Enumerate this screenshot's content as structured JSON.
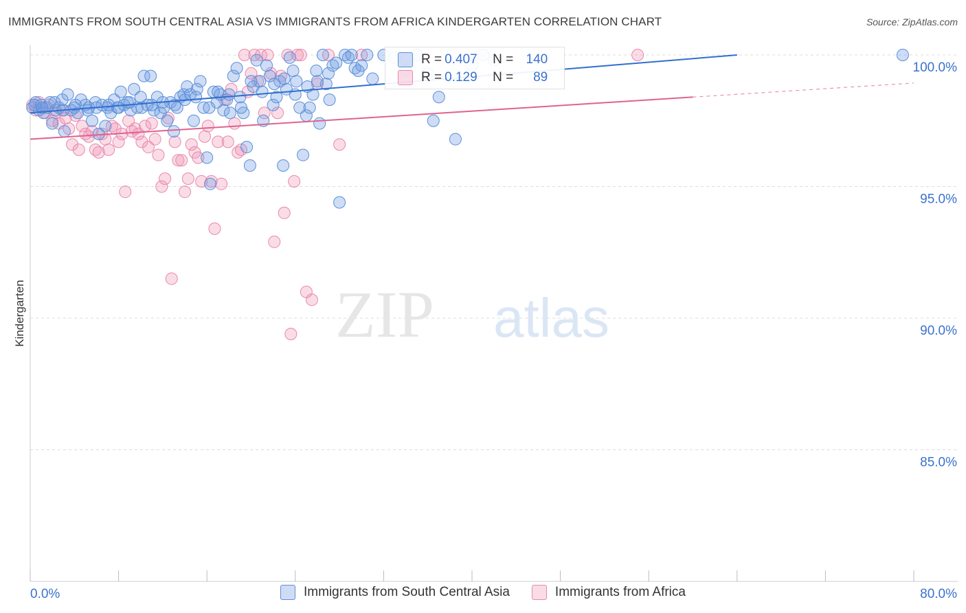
{
  "header": {
    "title": "IMMIGRANTS FROM SOUTH CENTRAL ASIA VS IMMIGRANTS FROM AFRICA KINDERGARTEN CORRELATION CHART",
    "source": "Source: ZipAtlas.com"
  },
  "watermark": {
    "zip": "ZIP",
    "atlas": "atlas"
  },
  "stats": {
    "r_label": "R =",
    "n_label": "N =",
    "series": [
      {
        "r": "0.407",
        "n": "140"
      },
      {
        "r": "0.129",
        "n": "89"
      }
    ]
  },
  "colors": {
    "blue": "#5b8fd9",
    "blue_fill": "rgba(114,158,226,0.35)",
    "blue_line": "#2f6fcf",
    "pink": "#e888aa",
    "pink_fill": "rgba(240,150,182,0.33)",
    "pink_line": "#e0628e",
    "axis_label": "#3a72cc",
    "grid": "#dcdcdc"
  },
  "chart_data": {
    "type": "scatter",
    "title": "IMMIGRANTS FROM SOUTH CENTRAL ASIA VS IMMIGRANTS FROM AFRICA KINDERGARTEN CORRELATION CHART",
    "xlabel": "",
    "ylabel": "Kindergarten",
    "xlim": [
      0,
      80
    ],
    "ylim": [
      80.5,
      100.8
    ],
    "x_tick_labels": [
      "0.0%",
      "80.0%"
    ],
    "y_ticks": [
      85,
      90,
      95,
      100
    ],
    "y_tick_labels": [
      "85.0%",
      "90.0%",
      "95.0%",
      "100.0%"
    ],
    "legend_position": "bottom",
    "series": [
      {
        "name": "Immigrants from South Central Asia",
        "color": "blue",
        "r": 0.407,
        "n": 140,
        "trend": {
          "x": [
            0,
            64
          ],
          "y": [
            97.8,
            100.0
          ],
          "dashed_to": 64
        },
        "points": [
          [
            0.2,
            98.0
          ],
          [
            0.5,
            98.2
          ],
          [
            0.8,
            97.9
          ],
          [
            1.0,
            98.1
          ],
          [
            1.2,
            97.8
          ],
          [
            1.5,
            98.0
          ],
          [
            1.8,
            98.2
          ],
          [
            2.0,
            97.4
          ],
          [
            2.3,
            97.9
          ],
          [
            2.6,
            98.0
          ],
          [
            2.9,
            98.3
          ],
          [
            3.1,
            97.1
          ],
          [
            3.4,
            98.5
          ],
          [
            3.7,
            97.9
          ],
          [
            4.0,
            98.0
          ],
          [
            4.3,
            97.8
          ],
          [
            4.6,
            98.3
          ],
          [
            5.0,
            98.1
          ],
          [
            5.3,
            98.0
          ],
          [
            5.6,
            97.5
          ],
          [
            5.9,
            98.2
          ],
          [
            6.2,
            97.0
          ],
          [
            6.5,
            98.1
          ],
          [
            6.8,
            97.3
          ],
          [
            7.0,
            98.0
          ],
          [
            7.3,
            97.8
          ],
          [
            7.6,
            98.3
          ],
          [
            7.9,
            98.0
          ],
          [
            8.2,
            98.6
          ],
          [
            8.5,
            98.1
          ],
          [
            8.8,
            98.2
          ],
          [
            9.1,
            97.9
          ],
          [
            9.4,
            98.7
          ],
          [
            9.7,
            98.0
          ],
          [
            10.0,
            98.4
          ],
          [
            10.3,
            99.2
          ],
          [
            10.6,
            98.1
          ],
          [
            10.9,
            99.2
          ],
          [
            11.2,
            97.9
          ],
          [
            11.5,
            98.4
          ],
          [
            11.8,
            97.8
          ],
          [
            12.1,
            98.0
          ],
          [
            12.4,
            97.5
          ],
          [
            12.7,
            98.2
          ],
          [
            13.0,
            97.1
          ],
          [
            13.3,
            98.0
          ],
          [
            13.6,
            98.4
          ],
          [
            13.9,
            98.5
          ],
          [
            14.2,
            98.8
          ],
          [
            14.5,
            98.5
          ],
          [
            14.8,
            97.5
          ],
          [
            15.1,
            98.7
          ],
          [
            15.4,
            99.0
          ],
          [
            15.7,
            98.0
          ],
          [
            16.0,
            96.1
          ],
          [
            16.3,
            95.1
          ],
          [
            16.6,
            98.6
          ],
          [
            16.9,
            98.2
          ],
          [
            17.2,
            98.5
          ],
          [
            17.5,
            97.9
          ],
          [
            17.8,
            98.3
          ],
          [
            18.1,
            97.8
          ],
          [
            18.4,
            99.2
          ],
          [
            18.7,
            99.5
          ],
          [
            19.0,
            98.4
          ],
          [
            19.3,
            97.8
          ],
          [
            19.6,
            96.5
          ],
          [
            19.9,
            95.8
          ],
          [
            20.2,
            98.8
          ],
          [
            20.5,
            99.8
          ],
          [
            20.8,
            99.0
          ],
          [
            21.1,
            97.5
          ],
          [
            21.4,
            99.6
          ],
          [
            21.7,
            99.2
          ],
          [
            22.0,
            98.1
          ],
          [
            22.3,
            98.4
          ],
          [
            22.6,
            99.0
          ],
          [
            22.9,
            95.8
          ],
          [
            23.2,
            98.7
          ],
          [
            23.5,
            99.9
          ],
          [
            23.8,
            99.4
          ],
          [
            24.1,
            99.0
          ],
          [
            24.4,
            98.0
          ],
          [
            24.7,
            96.2
          ],
          [
            25.0,
            97.7
          ],
          [
            25.3,
            98.0
          ],
          [
            25.6,
            98.5
          ],
          [
            25.9,
            99.4
          ],
          [
            26.2,
            97.4
          ],
          [
            26.5,
            100.0
          ],
          [
            26.8,
            98.9
          ],
          [
            27.1,
            98.3
          ],
          [
            27.4,
            99.6
          ],
          [
            27.7,
            99.7
          ],
          [
            28.0,
            94.4
          ],
          [
            28.5,
            100.0
          ],
          [
            28.8,
            99.9
          ],
          [
            29.1,
            100.0
          ],
          [
            29.4,
            99.5
          ],
          [
            29.7,
            99.4
          ],
          [
            30.0,
            99.6
          ],
          [
            30.5,
            100.0
          ],
          [
            31.0,
            99.1
          ],
          [
            32.0,
            100.0
          ],
          [
            33.0,
            99.9
          ],
          [
            34.0,
            99.4
          ],
          [
            35.0,
            100.0
          ],
          [
            36.0,
            99.3
          ],
          [
            36.5,
            97.5
          ],
          [
            37.0,
            98.4
          ],
          [
            38.5,
            96.8
          ],
          [
            40.0,
            99.6
          ],
          [
            41.0,
            100.0
          ],
          [
            42.0,
            99.8
          ],
          [
            79.0,
            100.0
          ],
          [
            0.4,
            98.1
          ],
          [
            1.1,
            98.0
          ],
          [
            2.2,
            98.2
          ],
          [
            3.0,
            97.9
          ],
          [
            4.1,
            98.1
          ],
          [
            5.2,
            97.9
          ],
          [
            6.0,
            98.0
          ],
          [
            7.1,
            98.1
          ],
          [
            8.0,
            98.0
          ],
          [
            9.0,
            98.2
          ],
          [
            10.1,
            98.0
          ],
          [
            11.0,
            98.1
          ],
          [
            12.0,
            98.2
          ],
          [
            13.1,
            98.1
          ],
          [
            14.0,
            98.3
          ],
          [
            15.0,
            98.4
          ],
          [
            16.2,
            98.0
          ],
          [
            17.0,
            98.6
          ],
          [
            18.0,
            98.5
          ],
          [
            19.1,
            98.0
          ],
          [
            20.0,
            99.0
          ],
          [
            21.0,
            98.6
          ],
          [
            22.1,
            98.9
          ],
          [
            23.0,
            99.1
          ],
          [
            24.0,
            98.5
          ],
          [
            25.1,
            98.8
          ],
          [
            26.0,
            99.0
          ],
          [
            27.0,
            99.3
          ]
        ]
      },
      {
        "name": "Immigrants from Africa",
        "color": "pink",
        "r": 0.129,
        "n": 89,
        "trend": {
          "x": [
            0,
            60
          ],
          "y": [
            96.8,
            98.4
          ],
          "dashed_to": 80
        },
        "points": [
          [
            0.2,
            98.1
          ],
          [
            0.5,
            97.9
          ],
          [
            0.8,
            98.2
          ],
          [
            1.1,
            98.0
          ],
          [
            1.4,
            97.8
          ],
          [
            1.7,
            98.1
          ],
          [
            2.0,
            97.5
          ],
          [
            2.3,
            97.8
          ],
          [
            2.6,
            97.4
          ],
          [
            2.9,
            97.9
          ],
          [
            3.2,
            97.6
          ],
          [
            3.5,
            97.2
          ],
          [
            3.8,
            96.6
          ],
          [
            4.1,
            97.7
          ],
          [
            4.4,
            96.4
          ],
          [
            4.7,
            97.3
          ],
          [
            5.0,
            97.0
          ],
          [
            5.3,
            96.9
          ],
          [
            5.6,
            97.1
          ],
          [
            5.9,
            96.4
          ],
          [
            6.2,
            96.3
          ],
          [
            6.5,
            97.0
          ],
          [
            6.8,
            96.8
          ],
          [
            7.1,
            96.4
          ],
          [
            7.4,
            97.3
          ],
          [
            7.7,
            97.2
          ],
          [
            8.0,
            96.7
          ],
          [
            8.3,
            97.0
          ],
          [
            8.6,
            94.8
          ],
          [
            8.9,
            97.5
          ],
          [
            9.2,
            97.1
          ],
          [
            9.5,
            97.2
          ],
          [
            9.8,
            97.0
          ],
          [
            10.1,
            96.7
          ],
          [
            10.4,
            97.3
          ],
          [
            10.7,
            96.5
          ],
          [
            11.0,
            97.4
          ],
          [
            11.3,
            96.8
          ],
          [
            11.6,
            96.2
          ],
          [
            11.9,
            95.0
          ],
          [
            12.2,
            95.3
          ],
          [
            12.5,
            97.6
          ],
          [
            12.8,
            91.5
          ],
          [
            13.1,
            96.7
          ],
          [
            13.4,
            96.0
          ],
          [
            13.7,
            96.0
          ],
          [
            14.0,
            94.8
          ],
          [
            14.3,
            95.3
          ],
          [
            14.6,
            96.6
          ],
          [
            14.9,
            96.3
          ],
          [
            15.2,
            96.1
          ],
          [
            15.5,
            95.2
          ],
          [
            15.8,
            96.9
          ],
          [
            16.1,
            97.3
          ],
          [
            16.4,
            95.2
          ],
          [
            16.7,
            93.4
          ],
          [
            17.0,
            96.7
          ],
          [
            17.3,
            95.1
          ],
          [
            17.6,
            98.3
          ],
          [
            17.9,
            96.7
          ],
          [
            18.2,
            98.7
          ],
          [
            18.5,
            97.4
          ],
          [
            18.8,
            96.3
          ],
          [
            19.1,
            96.4
          ],
          [
            19.4,
            100.0
          ],
          [
            19.7,
            98.6
          ],
          [
            20.0,
            99.3
          ],
          [
            20.3,
            100.0
          ],
          [
            20.6,
            99.0
          ],
          [
            20.9,
            100.0
          ],
          [
            21.2,
            97.8
          ],
          [
            21.5,
            100.0
          ],
          [
            21.8,
            99.3
          ],
          [
            22.1,
            92.9
          ],
          [
            22.4,
            97.8
          ],
          [
            22.7,
            99.2
          ],
          [
            23.0,
            94.0
          ],
          [
            23.3,
            100.0
          ],
          [
            23.6,
            89.4
          ],
          [
            23.9,
            95.2
          ],
          [
            24.2,
            100.0
          ],
          [
            24.5,
            100.0
          ],
          [
            25.0,
            91.0
          ],
          [
            25.5,
            90.7
          ],
          [
            26.0,
            98.9
          ],
          [
            27.0,
            100.0
          ],
          [
            28.0,
            96.6
          ],
          [
            30.0,
            100.0
          ],
          [
            55.0,
            100.0
          ]
        ]
      }
    ]
  },
  "legend": {
    "items": [
      {
        "label": "Immigrants from South Central Asia"
      },
      {
        "label": "Immigrants from Africa"
      }
    ]
  }
}
